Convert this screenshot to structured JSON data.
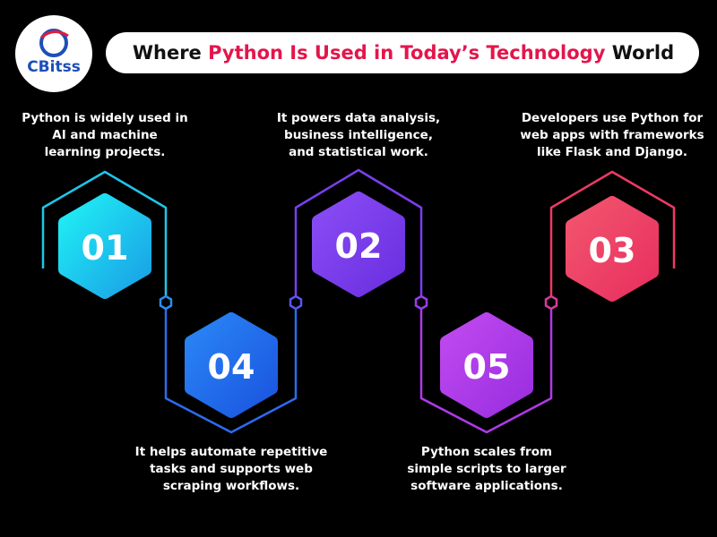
{
  "header": {
    "logo": "CBitss",
    "title": {
      "before": "Where ",
      "highlight": "Python Is Used in Today’s Technology",
      "after": " World"
    }
  },
  "steps": [
    {
      "number": "01",
      "lines": [
        "Python is widely used in",
        "AI and machine",
        "learning projects."
      ]
    },
    {
      "number": "02",
      "lines": [
        "It powers data analysis,",
        "business intelligence,",
        "and statistical work."
      ]
    },
    {
      "number": "03",
      "lines": [
        "Developers use Python for",
        "web apps with frameworks",
        "like Flask and Django."
      ]
    },
    {
      "number": "04",
      "lines": [
        "It helps automate repetitive",
        "tasks and supports web",
        "scraping workflows."
      ]
    },
    {
      "number": "05",
      "lines": [
        "Python scales from",
        "simple scripts to larger",
        "software applications."
      ]
    }
  ]
}
